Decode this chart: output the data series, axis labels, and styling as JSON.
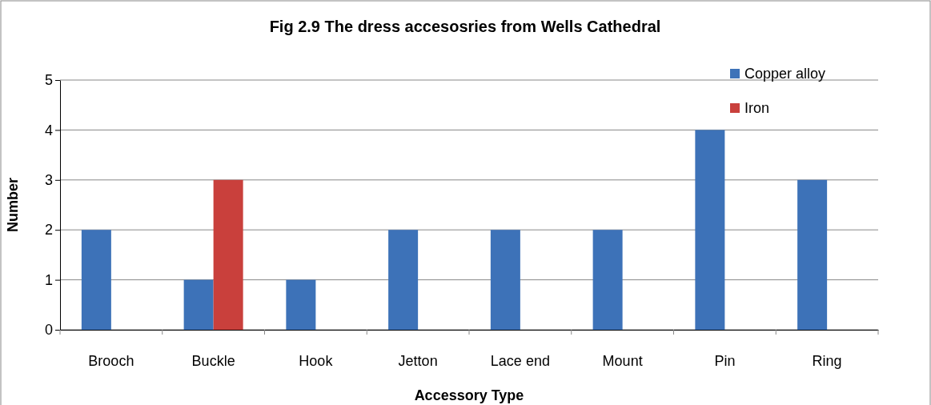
{
  "chart_data": {
    "type": "bar",
    "title": "Fig 2.9 The dress accesosries from Wells Cathedral",
    "xlabel": "Accessory Type",
    "ylabel": "Number",
    "categories": [
      "Brooch",
      "Buckle",
      "Hook",
      "Jetton",
      "Lace end",
      "Mount",
      "Pin",
      "Ring"
    ],
    "series": [
      {
        "name": "Copper alloy",
        "color": "#3d72b8",
        "values": [
          2,
          1,
          1,
          2,
          2,
          2,
          4,
          3
        ]
      },
      {
        "name": "Iron",
        "color": "#c9403c",
        "values": [
          null,
          3,
          null,
          null,
          null,
          null,
          null,
          null
        ]
      }
    ],
    "ylim": [
      0,
      5
    ],
    "yticks": [
      0,
      1,
      2,
      3,
      4,
      5
    ],
    "grid": "y",
    "legend": "top right"
  }
}
